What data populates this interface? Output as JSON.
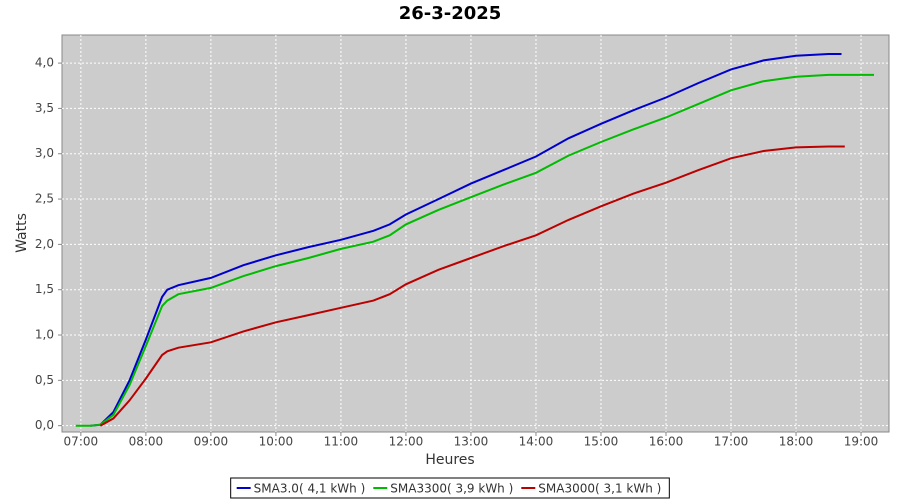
{
  "chart_data": {
    "type": "line",
    "title": "26-3-2025",
    "x_label": "Heures",
    "y_label": "Watts",
    "x": [
      6.92,
      7.15,
      7.3,
      7.5,
      7.75,
      8.0,
      8.25,
      8.33,
      8.5,
      9.0,
      9.5,
      10.0,
      10.5,
      11.0,
      11.5,
      11.75,
      12.0,
      12.5,
      13.0,
      13.5,
      14.0,
      14.5,
      15.0,
      15.5,
      16.0,
      16.5,
      17.0,
      17.5,
      18.0,
      18.5,
      18.7,
      18.75,
      19.2
    ],
    "series": [
      {
        "name": "SMA3.0( 4,1 kWh )",
        "color": "#0000cc",
        "values": [
          null,
          0,
          0.01,
          0.15,
          0.5,
          0.95,
          1.42,
          1.5,
          1.55,
          1.63,
          1.77,
          1.88,
          1.97,
          2.05,
          2.15,
          2.22,
          2.33,
          2.5,
          2.67,
          2.82,
          2.97,
          3.17,
          3.33,
          3.48,
          3.62,
          3.78,
          3.93,
          4.03,
          4.08,
          4.1,
          4.1,
          null,
          null
        ]
      },
      {
        "name": "SMA3300( 3,9 kWh )",
        "color": "#00bb00",
        "values": [
          0,
          0,
          0.01,
          0.12,
          0.45,
          0.88,
          1.32,
          1.38,
          1.45,
          1.52,
          1.65,
          1.76,
          1.85,
          1.95,
          2.03,
          2.1,
          2.22,
          2.38,
          2.52,
          2.66,
          2.79,
          2.98,
          3.13,
          3.27,
          3.4,
          3.55,
          3.7,
          3.8,
          3.85,
          3.87,
          3.87,
          3.87,
          3.87
        ]
      },
      {
        "name": "SMA3000( 3,1 kWh )",
        "color": "#bb0000",
        "values": [
          null,
          null,
          0,
          0.08,
          0.28,
          0.52,
          0.78,
          0.82,
          0.86,
          0.92,
          1.04,
          1.14,
          1.22,
          1.3,
          1.38,
          1.45,
          1.56,
          1.72,
          1.85,
          1.98,
          2.1,
          2.27,
          2.42,
          2.56,
          2.68,
          2.82,
          2.95,
          3.03,
          3.07,
          3.08,
          3.08,
          3.08,
          null
        ]
      }
    ],
    "xlim": [
      6.71,
      19.43
    ],
    "xticks": [
      {
        "value": 7,
        "label": "07:00"
      },
      {
        "value": 8,
        "label": "08:00"
      },
      {
        "value": 9,
        "label": "09:00"
      },
      {
        "value": 10,
        "label": "10:00"
      },
      {
        "value": 11,
        "label": "11:00"
      },
      {
        "value": 12,
        "label": "12:00"
      },
      {
        "value": 13,
        "label": "13:00"
      },
      {
        "value": 14,
        "label": "14:00"
      },
      {
        "value": 15,
        "label": "15:00"
      },
      {
        "value": 16,
        "label": "16:00"
      },
      {
        "value": 17,
        "label": "17:00"
      },
      {
        "value": 18,
        "label": "18:00"
      },
      {
        "value": 19,
        "label": "19:00"
      }
    ],
    "ylim": [
      -0.07,
      4.31
    ],
    "yticks": [
      {
        "value": 0,
        "label": "0,0"
      },
      {
        "value": 0.5,
        "label": "0,5"
      },
      {
        "value": 1,
        "label": "1,0"
      },
      {
        "value": 1.5,
        "label": "1,5"
      },
      {
        "value": 2,
        "label": "2,0"
      },
      {
        "value": 2.5,
        "label": "2,5"
      },
      {
        "value": 3,
        "label": "3,0"
      },
      {
        "value": 3.5,
        "label": "3,5"
      },
      {
        "value": 4,
        "label": "4,0"
      }
    ],
    "grid": true,
    "legend": "bottom"
  }
}
